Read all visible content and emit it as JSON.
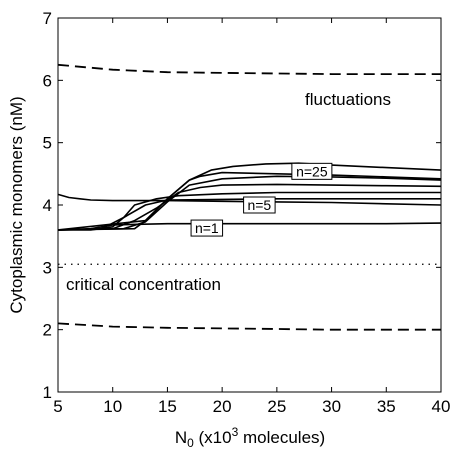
{
  "chart_data": {
    "type": "line",
    "xlabel_main": "N",
    "xlabel_sub": "0",
    "xlabel_rest_pre": " (x10",
    "xlabel_sup": "3",
    "xlabel_rest_post": " molecules)",
    "ylabel": "Cytoplasmic monomers (nM)",
    "xlim": [
      5,
      40
    ],
    "ylim": [
      1,
      7
    ],
    "xticks": [
      5,
      10,
      15,
      20,
      25,
      30,
      35,
      40
    ],
    "yticks": [
      1,
      2,
      3,
      4,
      5,
      6,
      7
    ],
    "grid": false,
    "annotations": {
      "fluctuations": "fluctuations",
      "critical": "critical concentration"
    },
    "reference_lines": {
      "critical_concentration": 3.05
    },
    "dashed_series": [
      {
        "x": [
          5,
          10,
          15,
          20,
          25,
          30,
          35,
          40
        ],
        "y": [
          6.25,
          6.17,
          6.13,
          6.12,
          6.11,
          6.1,
          6.1,
          6.1
        ]
      },
      {
        "x": [
          5,
          10,
          15,
          20,
          25,
          30,
          35,
          40
        ],
        "y": [
          2.1,
          2.05,
          2.03,
          2.02,
          2.01,
          2.0,
          2.0,
          2.0
        ]
      }
    ],
    "series": [
      {
        "name": "n=1",
        "x": [
          5,
          8,
          10,
          15,
          20,
          25,
          30,
          35,
          40
        ],
        "y": [
          3.6,
          3.62,
          3.68,
          3.7,
          3.7,
          3.7,
          3.7,
          3.7,
          3.71
        ]
      },
      {
        "x": [
          5,
          8,
          10,
          11,
          13,
          15,
          20,
          25,
          30,
          35,
          40
        ],
        "y": [
          3.6,
          3.6,
          3.65,
          3.8,
          4.0,
          4.08,
          4.09,
          4.1,
          4.1,
          4.1,
          4.1
        ]
      },
      {
        "name": "n=5",
        "x": [
          5,
          9,
          11,
          12,
          14,
          16,
          20,
          25,
          30,
          35,
          40
        ],
        "y": [
          3.6,
          3.62,
          3.8,
          4.0,
          4.1,
          4.15,
          4.18,
          4.2,
          4.2,
          4.2,
          4.2
        ]
      },
      {
        "x": [
          5,
          10,
          12,
          14,
          16,
          18,
          20,
          25,
          30,
          35,
          40
        ],
        "y": [
          3.6,
          3.62,
          3.75,
          3.95,
          4.2,
          4.28,
          4.32,
          4.33,
          4.32,
          4.31,
          4.3
        ]
      },
      {
        "x": [
          5,
          11,
          13,
          15,
          17,
          20,
          25,
          30,
          35,
          40
        ],
        "y": [
          3.6,
          3.62,
          3.73,
          4.05,
          4.32,
          4.42,
          4.46,
          4.45,
          4.43,
          4.4
        ]
      },
      {
        "x": [
          5,
          12,
          13,
          15,
          17,
          18,
          20,
          25,
          30,
          35,
          40
        ],
        "y": [
          3.6,
          3.62,
          3.75,
          4.1,
          4.4,
          4.46,
          4.52,
          4.5,
          4.48,
          4.45,
          4.42
        ]
      },
      {
        "name": "n=25",
        "x": [
          5,
          13,
          15,
          17,
          19,
          21,
          24,
          27,
          30,
          35,
          40
        ],
        "y": [
          3.6,
          3.75,
          4.1,
          4.4,
          4.56,
          4.62,
          4.66,
          4.67,
          4.64,
          4.6,
          4.56
        ]
      },
      {
        "x": [
          5,
          6,
          7,
          8,
          10,
          13,
          15,
          20,
          25,
          30,
          35,
          40
        ],
        "y": [
          4.17,
          4.12,
          4.1,
          4.08,
          4.07,
          4.07,
          4.07,
          4.06,
          4.05,
          4.04,
          4.02,
          4.0
        ]
      }
    ],
    "series_labels": [
      {
        "text": "n=25",
        "x": 28.2,
        "y": 4.54
      },
      {
        "text": "n=5",
        "x": 23.4,
        "y": 4.0
      },
      {
        "text": "n=1",
        "x": 18.6,
        "y": 3.63
      }
    ]
  }
}
